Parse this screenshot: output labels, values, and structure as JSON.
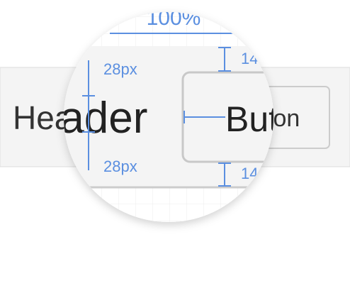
{
  "header": {
    "title": "Header"
  },
  "button": {
    "label": "Button"
  },
  "magnifier": {
    "width_label": "100%",
    "top_padding": "28px",
    "bottom_padding": "28px",
    "button_top_padding": "14",
    "button_bottom_padding": "14"
  }
}
